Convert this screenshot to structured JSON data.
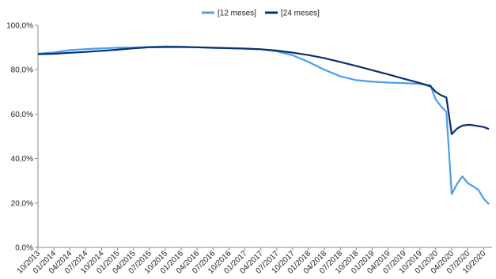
{
  "chart_data": {
    "type": "line",
    "title": "",
    "xlabel": "",
    "ylabel": "",
    "ylim": [
      0,
      100
    ],
    "yticks": [
      "0,0%",
      "20,0%",
      "40,0%",
      "60,0%",
      "80,0%",
      "100,0%"
    ],
    "ytick_values": [
      0,
      20,
      40,
      60,
      80,
      100
    ],
    "xticks": [
      "10/2013",
      "01/2014",
      "04/2014",
      "07/2014",
      "10/2014",
      "01/2015",
      "04/2015",
      "07/2015",
      "10/2015",
      "01/2016",
      "04/2016",
      "07/2016",
      "10/2016",
      "01/2017",
      "04/2017",
      "07/2017",
      "10/2017",
      "01/2018",
      "04/2018",
      "07/2018",
      "10/2018",
      "01/2019",
      "04/2019",
      "07/2019",
      "10/2019",
      "01/2020",
      "04/2020",
      "07/2020",
      "10/2020"
    ],
    "legend_position": "top",
    "grid": false,
    "series": [
      {
        "name": "[12 meses]",
        "color": "#4a9df0",
        "points": [
          [
            "10/2013",
            87.2
          ],
          [
            "01/2014",
            87.8
          ],
          [
            "04/2014",
            88.8
          ],
          [
            "07/2014",
            89.3
          ],
          [
            "10/2014",
            89.6
          ],
          [
            "01/2015",
            89.9
          ],
          [
            "04/2015",
            90.0
          ],
          [
            "07/2015",
            90.3
          ],
          [
            "10/2015",
            90.5
          ],
          [
            "01/2016",
            90.4
          ],
          [
            "04/2016",
            90.1
          ],
          [
            "07/2016",
            89.8
          ],
          [
            "10/2016",
            89.6
          ],
          [
            "01/2017",
            89.5
          ],
          [
            "04/2017",
            89.2
          ],
          [
            "07/2017",
            88.3
          ],
          [
            "10/2017",
            86.5
          ],
          [
            "01/2018",
            83.5
          ],
          [
            "04/2018",
            80.0
          ],
          [
            "07/2018",
            77.0
          ],
          [
            "10/2018",
            75.3
          ],
          [
            "01/2019",
            74.6
          ],
          [
            "04/2019",
            74.2
          ],
          [
            "07/2019",
            74.0
          ],
          [
            "10/2019",
            73.6
          ],
          [
            "12/2019",
            73.0
          ],
          [
            "01/2020",
            66.5
          ],
          [
            "02/2020",
            63.5
          ],
          [
            "03/2020",
            61.0
          ],
          [
            "04/2020",
            24.0
          ],
          [
            "05/2020",
            28.5
          ],
          [
            "06/2020",
            32.0
          ],
          [
            "07/2020",
            29.0
          ],
          [
            "08/2020",
            27.5
          ],
          [
            "09/2020",
            26.0
          ],
          [
            "10/2020",
            22.0
          ],
          [
            "11/2020",
            19.5
          ]
        ]
      },
      {
        "name": "[24 meses]",
        "color": "#0b2f6b",
        "points": [
          [
            "10/2013",
            87.0
          ],
          [
            "01/2014",
            87.2
          ],
          [
            "04/2014",
            87.6
          ],
          [
            "07/2014",
            88.0
          ],
          [
            "10/2014",
            88.5
          ],
          [
            "01/2015",
            89.0
          ],
          [
            "04/2015",
            89.6
          ],
          [
            "07/2015",
            90.1
          ],
          [
            "10/2015",
            90.2
          ],
          [
            "01/2016",
            90.2
          ],
          [
            "04/2016",
            90.1
          ],
          [
            "07/2016",
            89.9
          ],
          [
            "10/2016",
            89.7
          ],
          [
            "01/2017",
            89.5
          ],
          [
            "04/2017",
            89.2
          ],
          [
            "07/2017",
            88.6
          ],
          [
            "10/2017",
            87.7
          ],
          [
            "01/2018",
            86.6
          ],
          [
            "04/2018",
            85.2
          ],
          [
            "07/2018",
            83.5
          ],
          [
            "10/2018",
            81.7
          ],
          [
            "01/2019",
            79.8
          ],
          [
            "04/2019",
            77.9
          ],
          [
            "07/2019",
            75.9
          ],
          [
            "10/2019",
            74.0
          ],
          [
            "12/2019",
            72.5
          ],
          [
            "01/2020",
            70.0
          ],
          [
            "02/2020",
            68.5
          ],
          [
            "03/2020",
            67.5
          ],
          [
            "04/2020",
            51.0
          ],
          [
            "05/2020",
            53.5
          ],
          [
            "06/2020",
            54.8
          ],
          [
            "07/2020",
            55.2
          ],
          [
            "08/2020",
            55.0
          ],
          [
            "09/2020",
            54.6
          ],
          [
            "10/2020",
            54.2
          ],
          [
            "11/2020",
            53.3
          ]
        ]
      }
    ]
  }
}
